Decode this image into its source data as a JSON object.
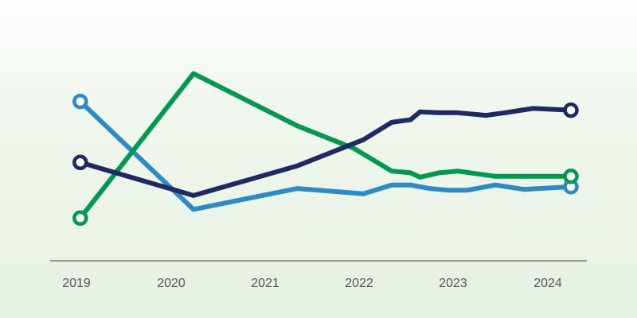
{
  "chart_data": {
    "type": "line",
    "title": "",
    "xlabel": "",
    "ylabel": "",
    "xlim": [
      2019,
      2024.3
    ],
    "ylim": [
      0,
      100
    ],
    "grid": false,
    "x_ticks": [
      "2019",
      "2020",
      "2021",
      "2022",
      "2023",
      "2024"
    ],
    "series": [
      {
        "color": "#2f8ac4",
        "points": [
          [
            2019.1,
            81
          ],
          [
            2020.3,
            19
          ],
          [
            2021.4,
            31
          ],
          [
            2022.1,
            28
          ],
          [
            2022.4,
            33
          ],
          [
            2022.6,
            33
          ],
          [
            2022.8,
            31
          ],
          [
            2023.0,
            30
          ],
          [
            2023.2,
            30
          ],
          [
            2023.5,
            33
          ],
          [
            2023.8,
            30.5
          ],
          [
            2024.3,
            32
          ]
        ]
      },
      {
        "color": "#00994d",
        "points": [
          [
            2019.1,
            14
          ],
          [
            2020.3,
            97
          ],
          [
            2021.4,
            67
          ],
          [
            2022.0,
            54
          ],
          [
            2022.4,
            41
          ],
          [
            2022.6,
            40
          ],
          [
            2022.7,
            37.5
          ],
          [
            2022.9,
            40
          ],
          [
            2023.1,
            41
          ],
          [
            2023.5,
            38
          ],
          [
            2024.3,
            38
          ]
        ]
      },
      {
        "color": "#1f2a63",
        "points": [
          [
            2019.1,
            46
          ],
          [
            2020.3,
            27
          ],
          [
            2021.4,
            44
          ],
          [
            2022.1,
            59
          ],
          [
            2022.4,
            69
          ],
          [
            2022.6,
            70.5
          ],
          [
            2022.7,
            75
          ],
          [
            2022.9,
            74.5
          ],
          [
            2023.1,
            74.5
          ],
          [
            2023.4,
            73
          ],
          [
            2023.6,
            74.5
          ],
          [
            2023.9,
            77
          ],
          [
            2024.3,
            76
          ]
        ]
      }
    ]
  }
}
